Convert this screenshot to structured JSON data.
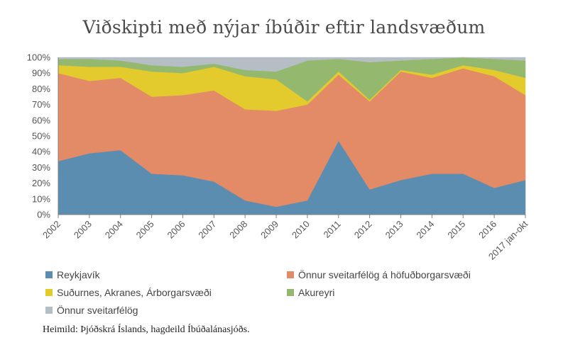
{
  "chart_data": {
    "type": "area",
    "stacked": true,
    "title": "Viðskipti með nýjar íbúðir eftir landsvæðum",
    "categories": [
      "2002",
      "2003",
      "2004",
      "2005",
      "2006",
      "2007",
      "2008",
      "2009",
      "2010",
      "2011",
      "2012",
      "2013",
      "2014",
      "2015",
      "2016",
      "2017 jan-okt"
    ],
    "ylim": [
      0,
      100
    ],
    "yticks": [
      "0%",
      "10%",
      "20%",
      "30%",
      "40%",
      "50%",
      "60%",
      "70%",
      "80%",
      "90%",
      "100%"
    ],
    "grid": false,
    "legend_position": "bottom",
    "series": [
      {
        "name": "Reykjavík",
        "color": "#5b8db0",
        "values": [
          34,
          39,
          41,
          26,
          25,
          21,
          9,
          5,
          9,
          47,
          16,
          22,
          26,
          26,
          17,
          22
        ]
      },
      {
        "name": "Önnur sveitarfélög á höfuðborgarsvæði",
        "color": "#e38a66",
        "values": [
          56,
          46,
          46,
          49,
          51,
          58,
          58,
          61,
          61,
          42,
          56,
          69,
          61,
          67,
          71,
          54
        ]
      },
      {
        "name": "Suðurnes, Akranes, Árborgarsvæði",
        "color": "#e4cb2d",
        "values": [
          5,
          9,
          7,
          16,
          14,
          15,
          21,
          20,
          2,
          2,
          1,
          1,
          2,
          2,
          4,
          11
        ]
      },
      {
        "name": "Akureyri",
        "color": "#94b96e",
        "values": [
          4,
          5,
          4,
          4,
          4,
          2,
          4,
          5,
          26,
          8,
          24,
          6,
          10,
          5,
          7,
          11
        ]
      },
      {
        "name": "Önnur sveitarfélög",
        "color": "#b4bec4",
        "values": [
          1,
          1,
          2,
          5,
          6,
          4,
          8,
          9,
          2,
          1,
          3,
          2,
          1,
          0,
          1,
          2
        ]
      }
    ],
    "source": "Heimild: Þjóðskrá Íslands, hagdeild Íbúðalánasjóðs."
  }
}
